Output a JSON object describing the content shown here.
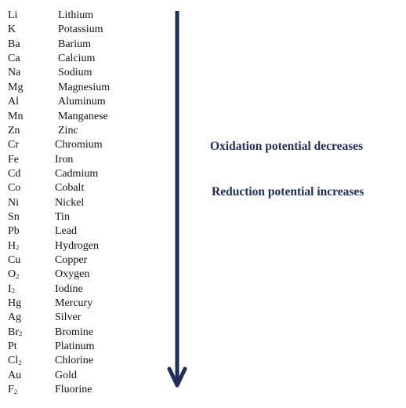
{
  "elements": [
    {
      "symbol": "Li",
      "sub": "",
      "name": "Lithium"
    },
    {
      "symbol": "K",
      "sub": "",
      "name": "Potassium"
    },
    {
      "symbol": "Ba",
      "sub": "",
      "name": "Barium"
    },
    {
      "symbol": "Ca",
      "sub": "",
      "name": "Calcium"
    },
    {
      "symbol": "Na",
      "sub": "",
      "name": "Sodium"
    },
    {
      "symbol": "Mg",
      "sub": "",
      "name": "Magnesium"
    },
    {
      "symbol": "Al",
      "sub": "",
      "name": "Aluminum"
    },
    {
      "symbol": "Mn",
      "sub": "",
      "name": "Manganese"
    },
    {
      "symbol": "Zn",
      "sub": "",
      "name": "Zinc"
    },
    {
      "symbol": "Cr",
      "sub": "",
      "name": "Chromium"
    },
    {
      "symbol": "Fe",
      "sub": "",
      "name": "Iron"
    },
    {
      "symbol": "Cd",
      "sub": "",
      "name": "Cadmium"
    },
    {
      "symbol": "Co",
      "sub": "",
      "name": "Cobalt"
    },
    {
      "symbol": "Ni",
      "sub": "",
      "name": "Nickel"
    },
    {
      "symbol": "Sn",
      "sub": "",
      "name": "Tin"
    },
    {
      "symbol": "Pb",
      "sub": "",
      "name": "Lead"
    },
    {
      "symbol": "H",
      "sub": "2",
      "name": "Hydrogen"
    },
    {
      "symbol": "Cu",
      "sub": "",
      "name": "Copper"
    },
    {
      "symbol": "O",
      "sub": "2",
      "name": "Oxygen"
    },
    {
      "symbol": "I",
      "sub": "2",
      "name": "Iodine"
    },
    {
      "symbol": "Hg",
      "sub": "",
      "name": "Mercury"
    },
    {
      "symbol": "Ag",
      "sub": "",
      "name": "Silver"
    },
    {
      "symbol": "Br",
      "sub": "2",
      "name": "Bromine"
    },
    {
      "symbol": "Pt",
      "sub": "",
      "name": "Platinum"
    },
    {
      "symbol": "Cl",
      "sub": "2",
      "name": "Chlorine"
    },
    {
      "symbol": "Au",
      "sub": "",
      "name": "Gold"
    },
    {
      "symbol": "F",
      "sub": "2",
      "name": "Fluorine"
    }
  ],
  "labels": {
    "oxidation": "Oxidation potential decreases",
    "reduction": "Reduction potential increases"
  },
  "arrow": {
    "direction": "down",
    "color": "#1f2d5a"
  }
}
